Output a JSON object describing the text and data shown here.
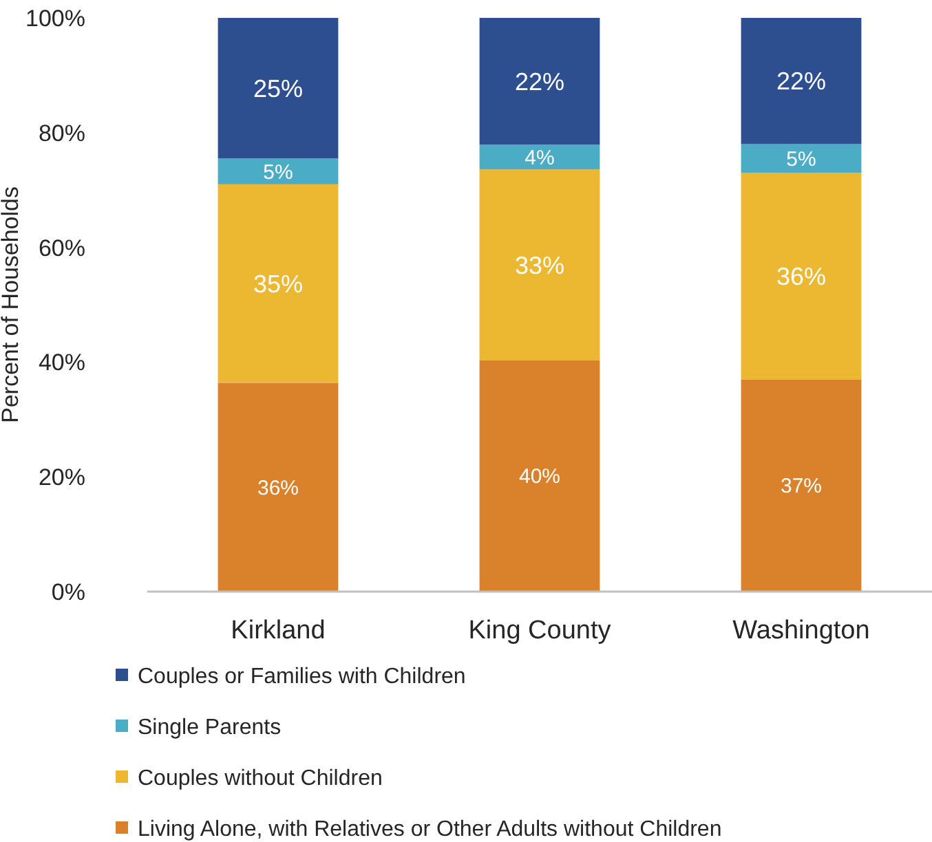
{
  "chart_data": {
    "type": "bar",
    "stacked": true,
    "ylabel": "Percent of Households",
    "categories": [
      "Kirkland",
      "King County",
      "Washington"
    ],
    "series": [
      {
        "name": "Living Alone, with Relatives or Other Adults without Children",
        "color": "#d9822b",
        "values": [
          36.4,
          40.3,
          37
        ],
        "value_labels": [
          "36%",
          "40%",
          "37%"
        ]
      },
      {
        "name": "Couples without Children",
        "color": "#ecb731",
        "values": [
          34.6,
          33.3,
          36
        ],
        "value_labels": [
          "35%",
          "33%",
          "36%"
        ]
      },
      {
        "name": "Single Parents",
        "color": "#4bacc6",
        "values": [
          4.5,
          4.3,
          5
        ],
        "value_labels": [
          "5%",
          "4%",
          "5%"
        ]
      },
      {
        "name": "Couples or Families with Children",
        "color": "#2e4f8f",
        "values": [
          24.5,
          22.1,
          22
        ],
        "value_labels": [
          "25%",
          "22%",
          "22%"
        ]
      }
    ],
    "ylim": [
      0,
      100
    ],
    "yticks": [
      {
        "value": 0,
        "label": "0%"
      },
      {
        "value": 20,
        "label": "20%"
      },
      {
        "value": 40,
        "label": "40%"
      },
      {
        "value": 60,
        "label": "60%"
      },
      {
        "value": 80,
        "label": "80%"
      },
      {
        "value": 100,
        "label": "100%"
      }
    ],
    "grid": false,
    "legend": "bottom"
  }
}
